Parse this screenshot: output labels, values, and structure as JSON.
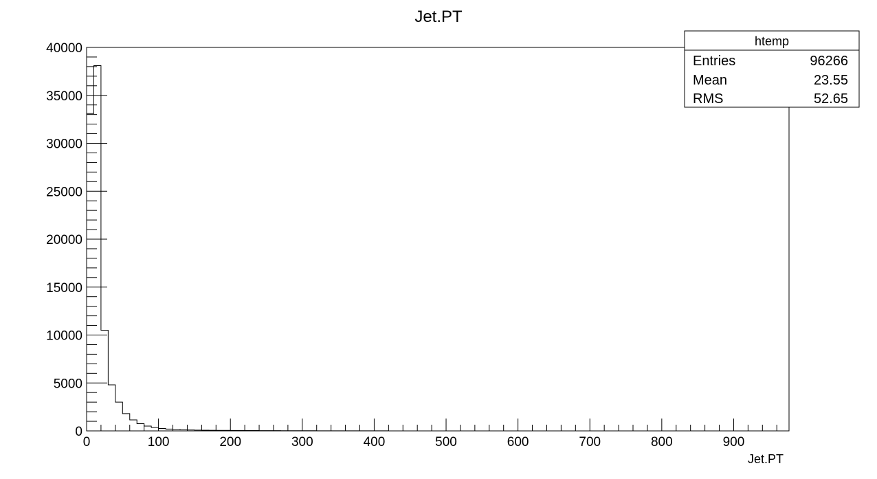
{
  "chart_data": {
    "type": "bar",
    "title": "Jet.PT",
    "xlabel": "Jet.PT",
    "ylabel": "",
    "xlim": [
      0,
      977
    ],
    "ylim": [
      0,
      40000
    ],
    "bin_width": 10,
    "x_ticks": [
      0,
      100,
      200,
      300,
      400,
      500,
      600,
      700,
      800,
      900
    ],
    "y_ticks": [
      0,
      5000,
      10000,
      15000,
      20000,
      25000,
      30000,
      35000,
      40000
    ],
    "counts": [
      33100,
      38100,
      10500,
      4800,
      3000,
      1800,
      1150,
      750,
      500,
      350,
      250,
      190,
      150,
      120,
      100,
      85,
      75,
      65,
      58,
      52,
      46,
      42,
      38,
      34,
      30,
      27,
      24,
      22,
      20,
      18,
      16,
      14,
      13,
      12,
      11,
      10,
      9,
      8,
      7,
      6,
      5,
      5,
      4,
      4,
      3,
      3,
      2,
      2,
      2
    ],
    "grid": false,
    "legend": "none"
  },
  "stats_box": {
    "name": "htemp",
    "rows": [
      {
        "label": "Entries",
        "value": "96266"
      },
      {
        "label": "Mean",
        "value": "23.55"
      },
      {
        "label": "RMS",
        "value": "52.65"
      }
    ]
  }
}
